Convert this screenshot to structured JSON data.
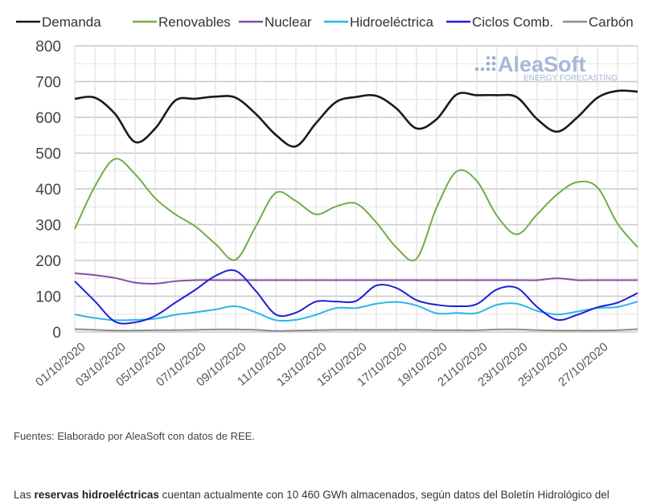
{
  "chart_data": {
    "type": "line",
    "title": "",
    "xlabel": "",
    "ylabel": "",
    "ylim": [
      0,
      800
    ],
    "yticks": [
      "0",
      "100",
      "200",
      "300",
      "400",
      "500",
      "600",
      "700",
      "800"
    ],
    "grid": true,
    "legend_position": "top",
    "x": [
      "01/10/2020",
      "02/10/2020",
      "03/10/2020",
      "04/10/2020",
      "05/10/2020",
      "06/10/2020",
      "07/10/2020",
      "08/10/2020",
      "09/10/2020",
      "10/10/2020",
      "11/10/2020",
      "12/10/2020",
      "13/10/2020",
      "14/10/2020",
      "15/10/2020",
      "16/10/2020",
      "17/10/2020",
      "18/10/2020",
      "19/10/2020",
      "20/10/2020",
      "21/10/2020",
      "22/10/2020",
      "23/10/2020",
      "24/10/2020",
      "25/10/2020",
      "26/10/2020",
      "27/10/2020",
      "28/10/2020",
      "29/10/2020"
    ],
    "xtick_labels": [
      "01/10/2020",
      "03/10/2020",
      "05/10/2020",
      "07/10/2020",
      "09/10/2020",
      "11/10/2020",
      "13/10/2020",
      "15/10/2020",
      "17/10/2020",
      "19/10/2020",
      "21/10/2020",
      "23/10/2020",
      "25/10/2020",
      "27/10/2020"
    ],
    "series": [
      {
        "name": "Demanda",
        "color": "#1a1a1a",
        "values": [
          652,
          655,
          610,
          531,
          569,
          647,
          652,
          658,
          655,
          610,
          551,
          519,
          584,
          643,
          657,
          660,
          625,
          569,
          595,
          664,
          662,
          662,
          656,
          595,
          560,
          600,
          655,
          674,
          672
        ]
      },
      {
        "name": "Renovables",
        "color": "#70ad47",
        "values": [
          288,
          407,
          484,
          441,
          374,
          329,
          295,
          246,
          202,
          295,
          389,
          366,
          329,
          351,
          359,
          306,
          236,
          205,
          348,
          449,
          422,
          325,
          273,
          329,
          385,
          419,
          404,
          303,
          237
        ]
      },
      {
        "name": "Nuclear",
        "color": "#7f4fa8",
        "values": [
          164,
          159,
          151,
          138,
          135,
          142,
          145,
          145,
          145,
          145,
          145,
          145,
          145,
          145,
          145,
          145,
          145,
          145,
          145,
          145,
          145,
          145,
          145,
          145,
          150,
          145,
          145,
          145,
          145
        ]
      },
      {
        "name": "Hidroeléctrica",
        "color": "#29b6e8",
        "values": [
          49,
          39,
          33,
          34,
          37,
          48,
          55,
          63,
          72,
          55,
          33,
          34,
          48,
          67,
          67,
          79,
          84,
          74,
          52,
          53,
          53,
          76,
          79,
          59,
          49,
          57,
          67,
          70,
          85
        ]
      },
      {
        "name": "Ciclos Comb.",
        "color": "#1f1fd6",
        "values": [
          142,
          86,
          29,
          27,
          45,
          82,
          118,
          157,
          171,
          115,
          49,
          54,
          85,
          85,
          87,
          130,
          123,
          89,
          76,
          72,
          78,
          119,
          123,
          70,
          34,
          48,
          69,
          82,
          109
        ]
      },
      {
        "name": "Carbón",
        "color": "#8c8c8c",
        "values": [
          8,
          6,
          4,
          4,
          5,
          5,
          6,
          7,
          7,
          6,
          3,
          4,
          5,
          6,
          6,
          6,
          6,
          6,
          5,
          5,
          5,
          7,
          7,
          5,
          4,
          4,
          4,
          5,
          8
        ]
      }
    ]
  },
  "logo": {
    "name": "AleaSoft",
    "tagline": "ENERGY FORECASTING"
  },
  "source_note": "Fuentes: Elaborado por AleaSoft con datos de REE.",
  "paragraph": {
    "pre": "Las ",
    "bold": "reservas hidroeléctricas",
    "post": " cuentan actualmente con 10 460 GWh almacenados, según datos del Boletín Hidrológico del"
  }
}
